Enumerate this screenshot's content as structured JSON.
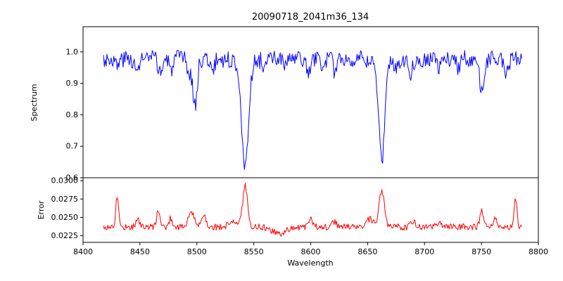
{
  "figure": {
    "title": "20090718_2041m36_134",
    "xlabel": "Wavelength",
    "background_color": "#ffffff",
    "axes_color": "#000000"
  },
  "chart_data": [
    {
      "type": "line",
      "title": "20090718_2041m36_134",
      "ylabel": "Spectrum",
      "xlabel": "",
      "xlim": [
        8400,
        8800
      ],
      "ylim": [
        0.6,
        1.08
      ],
      "yticks": [
        0.6,
        0.7,
        0.8,
        0.9,
        1.0
      ],
      "yticklabels": [
        "0.6",
        "0.7",
        "0.8",
        "0.9",
        "1.0"
      ],
      "grid": false,
      "legend": false,
      "series": {
        "name": "spectrum",
        "color": "#0000ff",
        "x_start": 8418,
        "x_end": 8786,
        "step": 0.75,
        "baseline": 0.978,
        "noise": 0.027,
        "seed": 3,
        "features": [
          {
            "center": 8430,
            "amp": -0.025,
            "sigma": 1.5
          },
          {
            "center": 8447,
            "amp": -0.05,
            "sigma": 1.5
          },
          {
            "center": 8468,
            "amp": -0.045,
            "sigma": 1.8
          },
          {
            "center": 8477,
            "amp": -0.04,
            "sigma": 1.4
          },
          {
            "center": 8493,
            "amp": -0.05,
            "sigma": 1.4
          },
          {
            "center": 8498.3,
            "amp": -0.148,
            "sigma": 2.0
          },
          {
            "center": 8514,
            "amp": -0.045,
            "sigma": 1.5
          },
          {
            "center": 8542.4,
            "amp": -0.34,
            "sigma": 2.8
          },
          {
            "center": 8542.4,
            "amp": -0.015,
            "sigma": 9
          },
          {
            "center": 8560,
            "amp": -0.028,
            "sigma": 1.4
          },
          {
            "center": 8578,
            "amp": -0.028,
            "sigma": 1.4
          },
          {
            "center": 8598,
            "amp": -0.048,
            "sigma": 1.8
          },
          {
            "center": 8611,
            "amp": -0.03,
            "sigma": 1.4
          },
          {
            "center": 8621,
            "amp": -0.038,
            "sigma": 1.5
          },
          {
            "center": 8648,
            "amp": -0.028,
            "sigma": 1.4
          },
          {
            "center": 8662.4,
            "amp": -0.315,
            "sigma": 2.5
          },
          {
            "center": 8662.4,
            "amp": -0.012,
            "sigma": 8
          },
          {
            "center": 8675,
            "amp": -0.032,
            "sigma": 1.4
          },
          {
            "center": 8688,
            "amp": -0.042,
            "sigma": 1.8
          },
          {
            "center": 8713,
            "amp": -0.035,
            "sigma": 1.5
          },
          {
            "center": 8730,
            "amp": -0.028,
            "sigma": 1.4
          },
          {
            "center": 8750.5,
            "amp": -0.1,
            "sigma": 2.2
          },
          {
            "center": 8772,
            "amp": -0.045,
            "sigma": 1.8
          }
        ]
      }
    },
    {
      "type": "line",
      "ylabel": "Error",
      "xlabel": "Wavelength",
      "xlim": [
        8400,
        8800
      ],
      "ylim": [
        0.0216,
        0.0304
      ],
      "yticks": [
        0.0225,
        0.025,
        0.0275,
        0.03
      ],
      "yticklabels": [
        "0.0225",
        "0.0250",
        "0.0275",
        "0.0300"
      ],
      "xticks": [
        8400,
        8450,
        8500,
        8550,
        8600,
        8650,
        8700,
        8750,
        8800
      ],
      "xticklabels": [
        "8400",
        "8450",
        "8500",
        "8550",
        "8600",
        "8650",
        "8700",
        "8750",
        "8800"
      ],
      "grid": false,
      "legend": false,
      "series": {
        "name": "error",
        "color": "#ff0000",
        "x_start": 8418,
        "x_end": 8786,
        "step": 0.75,
        "baseline": 0.0237,
        "noise": 0.00045,
        "seed": 17,
        "features": [
          {
            "center": 8430,
            "amp": 0.0042,
            "sigma": 1.2
          },
          {
            "center": 8448,
            "amp": 0.0012,
            "sigma": 1.5
          },
          {
            "center": 8466,
            "amp": 0.0024,
            "sigma": 1.3
          },
          {
            "center": 8477,
            "amp": 0.0012,
            "sigma": 1.5
          },
          {
            "center": 8495,
            "amp": 0.002,
            "sigma": 2.5
          },
          {
            "center": 8506,
            "amp": 0.0018,
            "sigma": 2.0
          },
          {
            "center": 8532,
            "amp": 0.001,
            "sigma": 3
          },
          {
            "center": 8542.4,
            "amp": 0.0056,
            "sigma": 2.2
          },
          {
            "center": 8572,
            "amp": -0.0009,
            "sigma": 6
          },
          {
            "center": 8600,
            "amp": 0.001,
            "sigma": 2
          },
          {
            "center": 8621,
            "amp": 0.0007,
            "sigma": 2
          },
          {
            "center": 8652,
            "amp": 0.001,
            "sigma": 3
          },
          {
            "center": 8662.4,
            "amp": 0.005,
            "sigma": 2.2
          },
          {
            "center": 8690,
            "amp": 0.0008,
            "sigma": 2
          },
          {
            "center": 8713,
            "amp": 0.0006,
            "sigma": 2
          },
          {
            "center": 8750,
            "amp": 0.0022,
            "sigma": 1.4
          },
          {
            "center": 8762,
            "amp": 0.001,
            "sigma": 1.5
          },
          {
            "center": 8780,
            "amp": 0.004,
            "sigma": 1.1
          }
        ]
      }
    }
  ]
}
